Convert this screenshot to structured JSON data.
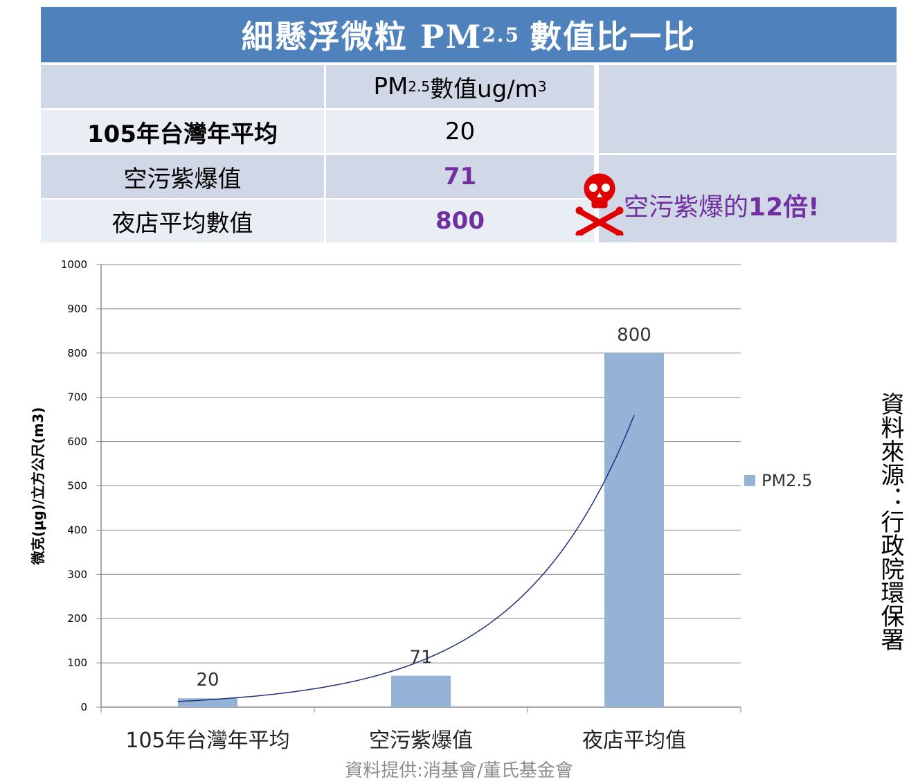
{
  "title": {
    "main": "細懸浮微粒 PM",
    "sub": "2.5",
    "tail": "數值比一比"
  },
  "table": {
    "header": {
      "pm": "PM",
      "pm_sub": "2.5",
      "unit": "數值ug/m",
      "unit_sup": "3"
    },
    "rows": [
      {
        "label": "105年台灣年平均",
        "value": "20"
      },
      {
        "label": "空污紫爆值",
        "value": "71"
      },
      {
        "label": "夜店平均數值",
        "value": "800"
      }
    ],
    "note": {
      "prefix": "空污紫爆的",
      "strong": "12倍!"
    }
  },
  "colors": {
    "banner": "#4f81bd",
    "bar": "#95b3d7",
    "accent": "#7030a0",
    "skull": "#e00000"
  },
  "icons": {
    "warning": "skull-crossbones-icon"
  },
  "chart_data": {
    "type": "bar",
    "categories": [
      "105年台灣年平均",
      "空污紫爆值",
      "夜店平均值"
    ],
    "series": [
      {
        "name": "PM2.5",
        "values": [
          20,
          71,
          800
        ]
      }
    ],
    "data_labels": [
      "20",
      "71",
      "800"
    ],
    "ylabel": "微克(μg)/立方公尺(m3)",
    "ylim": [
      0,
      1000
    ],
    "yticks": [
      "0",
      "100",
      "200",
      "300",
      "400",
      "500",
      "600",
      "700",
      "800",
      "900",
      "1000"
    ],
    "grid": true,
    "legend": "right",
    "trendline": "exponential"
  },
  "footer": {
    "credit": "資料提供:消基會/董氏基金會",
    "source": "資料來源：行政院環保署"
  }
}
